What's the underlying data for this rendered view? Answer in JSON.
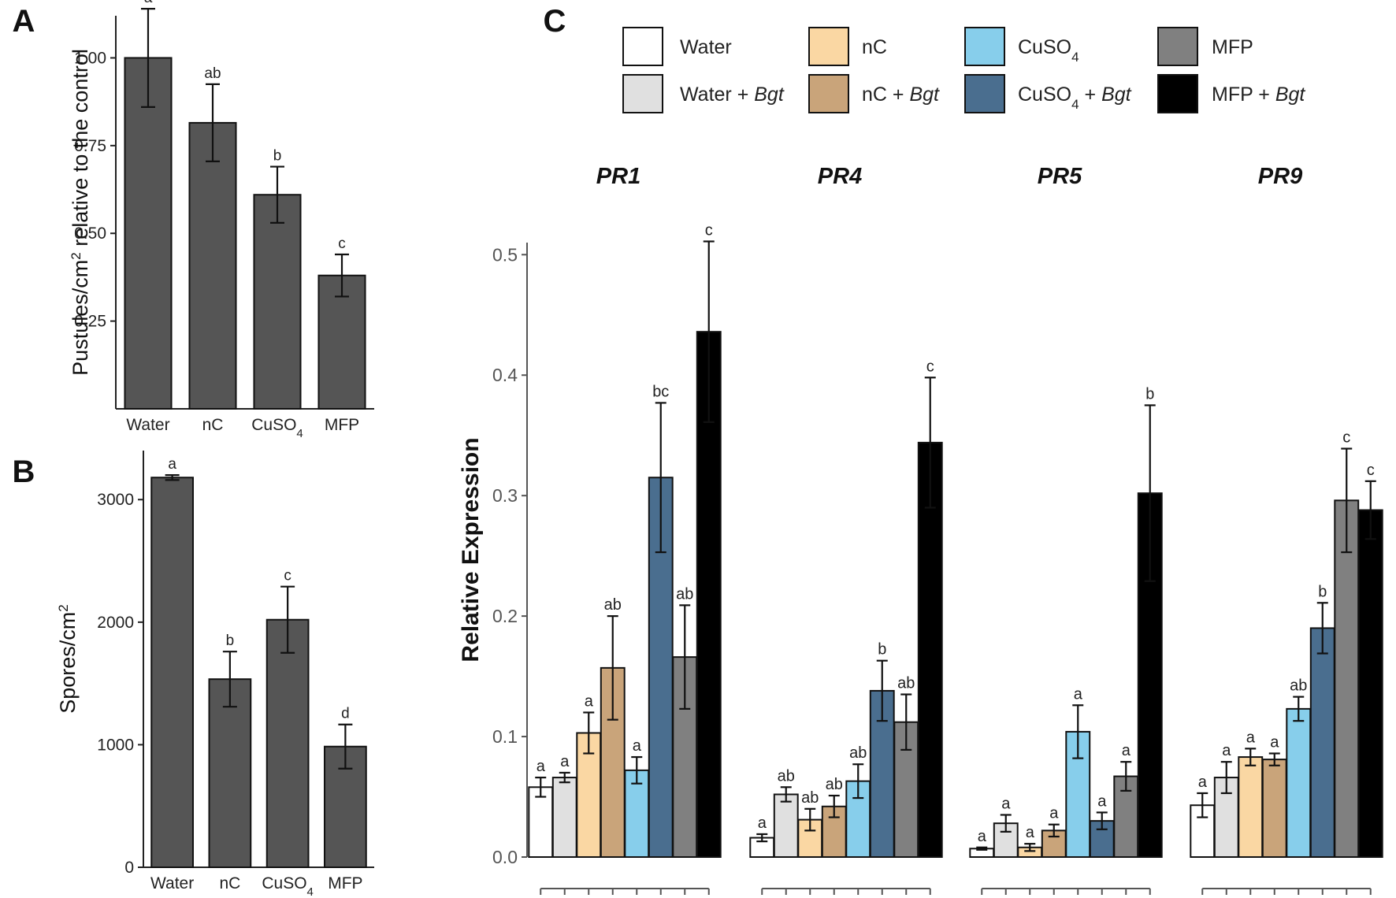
{
  "panel_labels": {
    "a": "A",
    "b": "B",
    "c": "C"
  },
  "colors": {
    "panel_ab_bar": "#555555",
    "Water": "#FFFFFF",
    "Water_Bgt": "#E0E0E0",
    "nC": "#FAD7A3",
    "nC_Bgt": "#C9A47A",
    "CuSO4": "#87CEEB",
    "CuSO4_Bgt": "#4A6E8F",
    "MFP": "#808080",
    "MFP_Bgt": "#000000"
  },
  "chart_data": [
    {
      "id": "A",
      "type": "bar",
      "ylabel": "Pustules/cm² relative to the control",
      "ylabel_parts": {
        "pre": "Pustules/cm",
        "sup": "2",
        "post": " relative to the control"
      },
      "categories": [
        "Water",
        "nC",
        "CuSO4",
        "MFP"
      ],
      "category_labels": [
        {
          "main": "Water",
          "sub": ""
        },
        {
          "main": "nC",
          "sub": ""
        },
        {
          "main": "CuSO",
          "sub": "4"
        },
        {
          "main": "MFP",
          "sub": ""
        }
      ],
      "values": [
        1.0,
        0.815,
        0.61,
        0.38
      ],
      "errors": [
        0.14,
        0.11,
        0.08,
        0.06
      ],
      "letters": [
        "a",
        "ab",
        "b",
        "c"
      ],
      "yticks": [
        0.25,
        0.5,
        0.75,
        1.0
      ],
      "ytick_labels": [
        "0.25",
        "0.50",
        "0.75",
        "1.00"
      ],
      "ylim": [
        0.0,
        1.12
      ]
    },
    {
      "id": "B",
      "type": "bar",
      "ylabel": "Spores/cm²",
      "ylabel_parts": {
        "pre": "Spores/cm",
        "sup": "2",
        "post": ""
      },
      "categories": [
        "Water",
        "nC",
        "CuSO4",
        "MFP"
      ],
      "category_labels": [
        {
          "main": "Water",
          "sub": ""
        },
        {
          "main": "nC",
          "sub": ""
        },
        {
          "main": "CuSO",
          "sub": "4"
        },
        {
          "main": "MFP",
          "sub": ""
        }
      ],
      "values": [
        3180,
        1535,
        2020,
        985
      ],
      "errors": [
        20,
        225,
        270,
        180
      ],
      "letters": [
        "a",
        "b",
        "c",
        "d"
      ],
      "yticks": [
        0,
        1000,
        2000,
        3000
      ],
      "ytick_labels": [
        "0",
        "1000",
        "2000",
        "3000"
      ],
      "ylim": [
        0,
        3400
      ]
    },
    {
      "id": "C",
      "type": "bar",
      "ylabel": "Relative Expression",
      "ylim": [
        0,
        0.51
      ],
      "yticks": [
        0.0,
        0.1,
        0.2,
        0.3,
        0.4,
        0.5
      ],
      "ytick_labels": [
        "0.0",
        "0.1",
        "0.2",
        "0.3",
        "0.4",
        "0.5"
      ],
      "treatments": [
        "Water",
        "Water_Bgt",
        "nC",
        "nC_Bgt",
        "CuSO4",
        "CuSO4_Bgt",
        "MFP",
        "MFP_Bgt"
      ],
      "legend": [
        {
          "key": "Water",
          "main": "Water",
          "sub": "",
          "italic": ""
        },
        {
          "key": "Water_Bgt",
          "main": "Water + ",
          "sub": "",
          "italic": "Bgt"
        },
        {
          "key": "nC",
          "main": "nC",
          "sub": "",
          "italic": ""
        },
        {
          "key": "nC_Bgt",
          "main": "nC + ",
          "sub": "",
          "italic": "Bgt"
        },
        {
          "key": "CuSO4",
          "main": "CuSO",
          "sub": "4",
          "italic": ""
        },
        {
          "key": "CuSO4_Bgt",
          "main": "CuSO",
          "sub": "4",
          "after": " + ",
          "italic": "Bgt"
        },
        {
          "key": "MFP",
          "main": "MFP",
          "sub": "",
          "italic": ""
        },
        {
          "key": "MFP_Bgt",
          "main": "MFP + ",
          "sub": "",
          "italic": "Bgt"
        }
      ],
      "genes": [
        {
          "name": "PR1",
          "values": [
            0.058,
            0.066,
            0.103,
            0.157,
            0.072,
            0.315,
            0.166,
            0.436
          ],
          "errors": [
            0.008,
            0.004,
            0.017,
            0.043,
            0.011,
            0.062,
            0.043,
            0.075
          ],
          "letters": [
            "a",
            "a",
            "a",
            "ab",
            "a",
            "bc",
            "ab",
            "c"
          ]
        },
        {
          "name": "PR4",
          "values": [
            0.016,
            0.052,
            0.031,
            0.042,
            0.063,
            0.138,
            0.112,
            0.344
          ],
          "errors": [
            0.003,
            0.006,
            0.009,
            0.009,
            0.014,
            0.025,
            0.023,
            0.054
          ],
          "letters": [
            "a",
            "ab",
            "ab",
            "ab",
            "ab",
            "b",
            "ab",
            "c"
          ]
        },
        {
          "name": "PR5",
          "values": [
            0.007,
            0.028,
            0.008,
            0.022,
            0.104,
            0.03,
            0.067,
            0.302
          ],
          "errors": [
            0.001,
            0.007,
            0.003,
            0.005,
            0.022,
            0.007,
            0.012,
            0.073
          ],
          "letters": [
            "a",
            "a",
            "a",
            "a",
            "a",
            "a",
            "a",
            "b"
          ]
        },
        {
          "name": "PR9",
          "values": [
            0.043,
            0.066,
            0.083,
            0.081,
            0.123,
            0.19,
            0.296,
            0.288
          ],
          "errors": [
            0.01,
            0.013,
            0.007,
            0.005,
            0.01,
            0.021,
            0.043,
            0.024
          ],
          "letters": [
            "a",
            "a",
            "a",
            "a",
            "ab",
            "b",
            "c",
            "c"
          ]
        }
      ]
    }
  ]
}
